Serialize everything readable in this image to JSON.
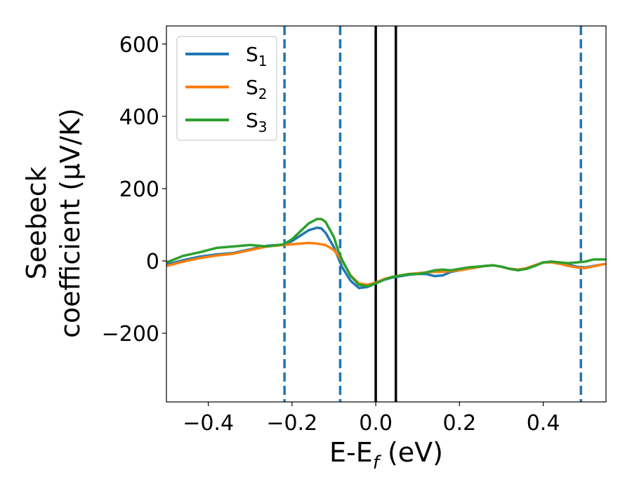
{
  "chart_data": {
    "type": "line",
    "xlabel": {
      "main": "E-E",
      "sub": "f",
      "unit": " (eV)"
    },
    "ylabel": {
      "line1": "Seebeck",
      "line2": "coefficient  (μV/K)"
    },
    "xlim": [
      -0.5,
      0.55
    ],
    "ylim": [
      -390,
      650
    ],
    "xticks": [
      -0.4,
      -0.2,
      0.0,
      0.2,
      0.4
    ],
    "xtick_labels": [
      "−0.4",
      "−0.2",
      "0.0",
      "0.2",
      "0.4"
    ],
    "yticks": [
      -200,
      0,
      200,
      400,
      600
    ],
    "ytick_labels": [
      "−200",
      "0",
      "200",
      "400",
      "600"
    ],
    "grid": false,
    "legend_position": "top-left",
    "series": [
      {
        "name": "S",
        "sub": "1",
        "color": "#1f77b4",
        "x": [
          -0.5,
          -0.46,
          -0.42,
          -0.38,
          -0.34,
          -0.3,
          -0.26,
          -0.22,
          -0.2,
          -0.18,
          -0.16,
          -0.14,
          -0.13,
          -0.12,
          -0.1,
          -0.09,
          -0.08,
          -0.06,
          -0.04,
          -0.02,
          0.0,
          0.02,
          0.04,
          0.06,
          0.08,
          0.1,
          0.12,
          0.14,
          0.16,
          0.18,
          0.2,
          0.22,
          0.24,
          0.26,
          0.28,
          0.3,
          0.32,
          0.34,
          0.36,
          0.38,
          0.4,
          0.42,
          0.44,
          0.46,
          0.48,
          0.5,
          0.52,
          0.55
        ],
        "y": [
          -10,
          2,
          12,
          18,
          22,
          32,
          42,
          45,
          55,
          70,
          85,
          92,
          90,
          78,
          38,
          10,
          -18,
          -55,
          -75,
          -72,
          -62,
          -52,
          -46,
          -42,
          -38,
          -36,
          -36,
          -42,
          -40,
          -30,
          -26,
          -22,
          -18,
          -14,
          -12,
          -16,
          -22,
          -24,
          -20,
          -12,
          -4,
          -2,
          -5,
          -10,
          -16,
          -18,
          -14,
          -8
        ]
      },
      {
        "name": "S",
        "sub": "2",
        "color": "#ff7f0e",
        "x": [
          -0.5,
          -0.46,
          -0.42,
          -0.38,
          -0.34,
          -0.3,
          -0.26,
          -0.22,
          -0.2,
          -0.18,
          -0.16,
          -0.14,
          -0.12,
          -0.1,
          -0.08,
          -0.06,
          -0.04,
          -0.02,
          0.0,
          0.02,
          0.04,
          0.06,
          0.08,
          0.1,
          0.12,
          0.14,
          0.16,
          0.18,
          0.2,
          0.22,
          0.24,
          0.26,
          0.28,
          0.3,
          0.32,
          0.34,
          0.36,
          0.38,
          0.4,
          0.42,
          0.44,
          0.46,
          0.48,
          0.5,
          0.52,
          0.55
        ],
        "y": [
          -14,
          -2,
          8,
          15,
          20,
          30,
          40,
          44,
          46,
          48,
          50,
          48,
          44,
          30,
          0,
          -40,
          -62,
          -66,
          -60,
          -50,
          -44,
          -40,
          -36,
          -34,
          -32,
          -30,
          -30,
          -28,
          -26,
          -22,
          -18,
          -14,
          -12,
          -16,
          -22,
          -24,
          -20,
          -12,
          -4,
          -4,
          -8,
          -14,
          -18,
          -20,
          -15,
          -8
        ]
      },
      {
        "name": "S",
        "sub": "3",
        "color": "#2ca02c",
        "x": [
          -0.5,
          -0.46,
          -0.42,
          -0.38,
          -0.34,
          -0.3,
          -0.26,
          -0.22,
          -0.2,
          -0.18,
          -0.16,
          -0.14,
          -0.13,
          -0.12,
          -0.1,
          -0.09,
          -0.08,
          -0.06,
          -0.04,
          -0.02,
          0.0,
          0.02,
          0.04,
          0.06,
          0.08,
          0.1,
          0.12,
          0.14,
          0.16,
          0.18,
          0.2,
          0.22,
          0.24,
          0.26,
          0.28,
          0.3,
          0.32,
          0.34,
          0.36,
          0.38,
          0.4,
          0.42,
          0.44,
          0.46,
          0.48,
          0.5,
          0.52,
          0.55
        ],
        "y": [
          -4,
          14,
          24,
          36,
          40,
          44,
          40,
          46,
          60,
          82,
          104,
          116,
          116,
          108,
          66,
          30,
          2,
          -42,
          -66,
          -70,
          -62,
          -52,
          -44,
          -40,
          -36,
          -36,
          -32,
          -26,
          -24,
          -26,
          -22,
          -18,
          -16,
          -14,
          -12,
          -16,
          -22,
          -26,
          -22,
          -14,
          -4,
          -2,
          -4,
          -6,
          -4,
          -2,
          4,
          4
        ]
      }
    ],
    "vlines": [
      {
        "x": -0.218,
        "style": "dashed",
        "color": "#1f77b4"
      },
      {
        "x": -0.085,
        "style": "dashed",
        "color": "#1f77b4"
      },
      {
        "x": 0.0,
        "style": "solid",
        "color": "#000000"
      },
      {
        "x": 0.048,
        "style": "solid",
        "color": "#000000"
      },
      {
        "x": 0.49,
        "style": "dashed",
        "color": "#1f77b4"
      }
    ]
  }
}
